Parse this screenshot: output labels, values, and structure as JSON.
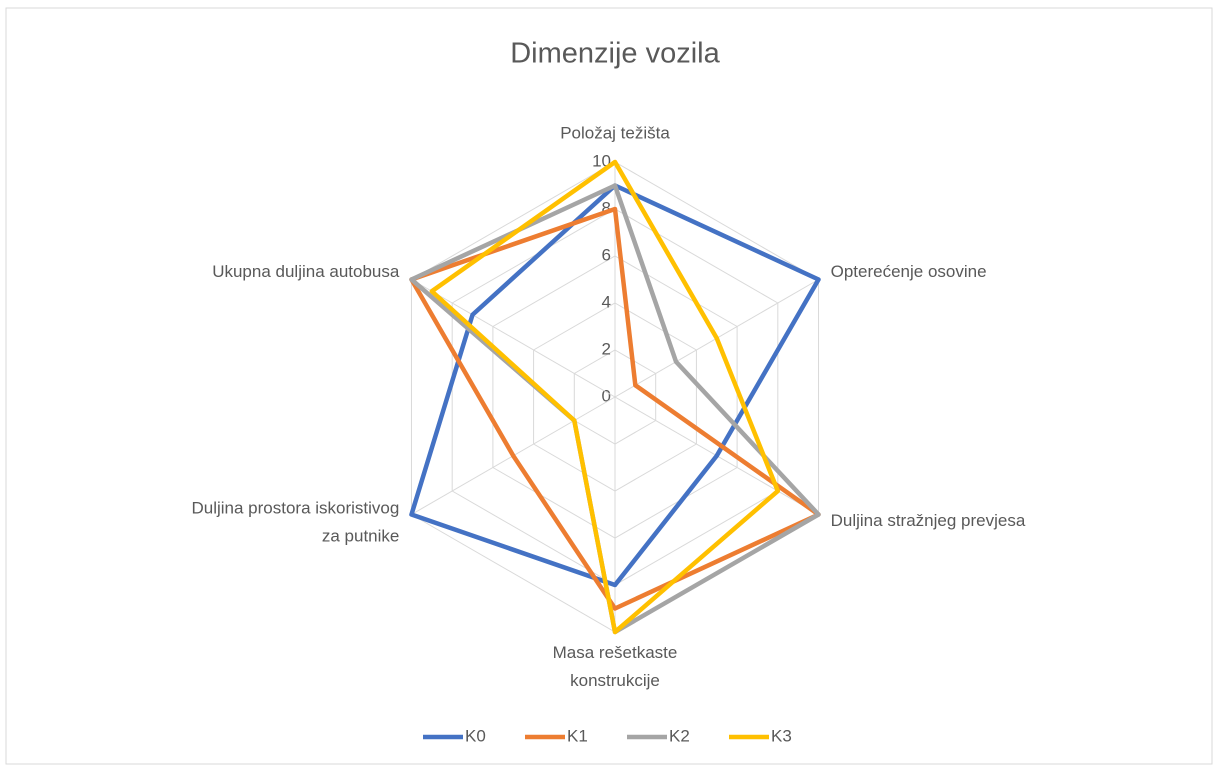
{
  "chart_data": {
    "type": "radar",
    "title": "Dimenzije vozila",
    "categories": [
      "Položaj težišta",
      "Opterećenje osovine",
      "Duljina stražnjeg prevjesa",
      "Masa rešetkaste konstrukcije",
      "Duljina prostora iskoristivog za putnike",
      "Ukupna duljina autobusa"
    ],
    "series": [
      {
        "name": "K0",
        "color": "#4472c4",
        "values": [
          9,
          10,
          5,
          8,
          10,
          7
        ]
      },
      {
        "name": "K1",
        "color": "#ed7d31",
        "values": [
          8,
          1,
          10,
          9,
          5,
          10
        ]
      },
      {
        "name": "K2",
        "color": "#a5a5a5",
        "values": [
          9,
          3,
          10,
          10,
          2,
          10
        ]
      },
      {
        "name": "K3",
        "color": "#ffc000",
        "values": [
          10,
          5,
          8,
          10,
          2,
          9
        ]
      }
    ],
    "ylim": [
      0,
      10
    ],
    "yticks": [
      0,
      2,
      4,
      6,
      8,
      10
    ],
    "grid": true,
    "legend": "bottom"
  }
}
